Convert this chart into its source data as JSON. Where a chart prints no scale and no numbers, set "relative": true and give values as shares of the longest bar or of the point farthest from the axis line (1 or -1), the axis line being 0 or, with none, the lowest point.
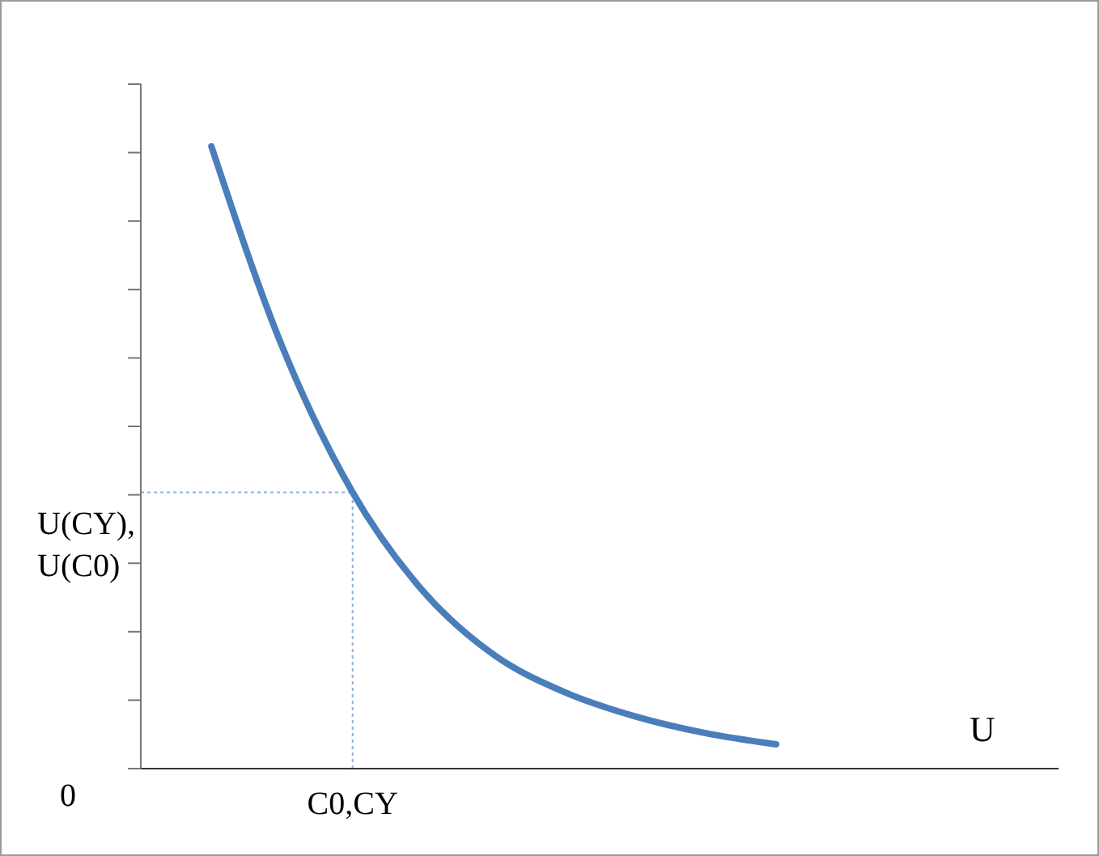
{
  "chart_data": {
    "type": "line",
    "relative": true,
    "xlabel": "U",
    "marker": "none",
    "line_style": "solid",
    "categories": [
      null,
      null,
      null,
      null,
      null,
      null,
      null,
      null,
      null,
      null,
      null,
      null,
      null,
      null
    ],
    "series": [
      {
        "color": "#4a7ebb",
        "values": [
          null,
          1,
          0.679,
          0.444,
          0.285,
          0.183,
          0.123,
          0.084,
          0.057,
          0.039,
          null,
          null,
          null,
          null
        ]
      }
    ],
    "ref_lines": [
      {
        "axis": "x",
        "label": "C0,CY",
        "color": "#8fb0dc",
        "line_style": "dotted"
      },
      {
        "axis": "y",
        "value": 0.444,
        "label": "U(CY),\nU(C0)",
        "color": "#8fb0dc",
        "line_style": "dotted"
      }
    ],
    "annotations": [
      "0"
    ]
  }
}
